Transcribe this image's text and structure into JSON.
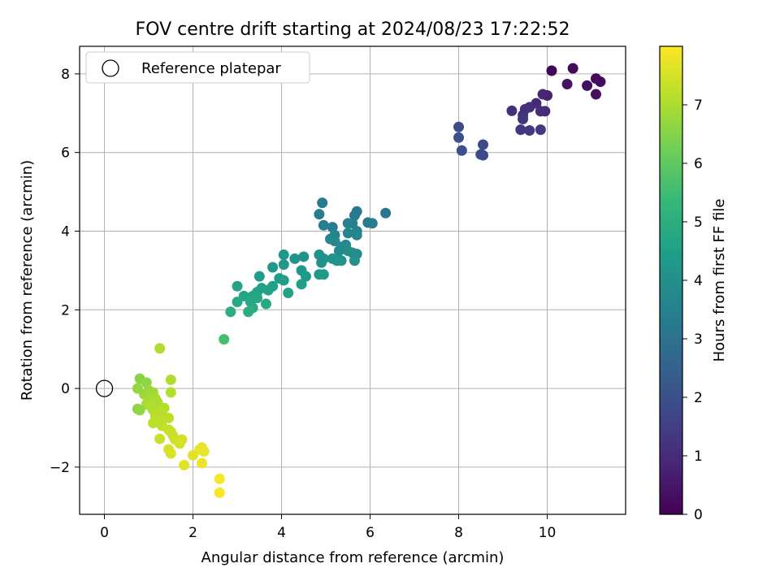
{
  "chart_data": {
    "type": "scatter",
    "title": "FOV centre drift starting at 2024/08/23 17:22:52",
    "xlabel": "Angular distance from reference (arcmin)",
    "ylabel": "Rotation from reference (arcmin)",
    "xlim": [
      -0.56,
      11.77
    ],
    "ylim": [
      -3.2,
      8.7
    ],
    "xticks": [
      0,
      2,
      4,
      6,
      8,
      10
    ],
    "xtick_labels": [
      "0",
      "2",
      "4",
      "6",
      "8",
      "10"
    ],
    "yticks": [
      -2,
      0,
      2,
      4,
      6,
      8
    ],
    "ytick_labels": [
      "−2",
      "0",
      "2",
      "4",
      "6",
      "8"
    ],
    "grid": true,
    "legend": {
      "placement": "upper-left",
      "entries": [
        "Reference platepar"
      ]
    },
    "colorbar": {
      "label": "Hours from first FF file",
      "colormap": "viridis",
      "range": [
        0,
        8
      ],
      "ticks": [
        0,
        1,
        2,
        3,
        4,
        5,
        6,
        7
      ],
      "tick_labels": [
        "0",
        "1",
        "2",
        "3",
        "4",
        "5",
        "6",
        "7"
      ]
    },
    "colormap_stops": [
      "#440154",
      "#482878",
      "#3e4989",
      "#31688e",
      "#26828e",
      "#1f9e89",
      "#35b779",
      "#6ece58",
      "#b5de2b",
      "#fde725"
    ],
    "series": [
      {
        "name": "Reference platepar",
        "marker": "open-circle",
        "points": [
          {
            "x": 0,
            "y": 0
          }
        ]
      },
      {
        "marker": "filled-circle",
        "points": [
          {
            "x": 10.1,
            "y": 8.08,
            "t": 0.1
          },
          {
            "x": 10.58,
            "y": 8.14,
            "t": 0.15
          },
          {
            "x": 11.1,
            "y": 7.88,
            "t": 0.2
          },
          {
            "x": 11.2,
            "y": 7.8,
            "t": 0.25
          },
          {
            "x": 10.9,
            "y": 7.7,
            "t": 0.3
          },
          {
            "x": 11.1,
            "y": 7.48,
            "t": 0.35
          },
          {
            "x": 10.45,
            "y": 7.74,
            "t": 0.4
          },
          {
            "x": 10.0,
            "y": 7.45,
            "t": 0.7
          },
          {
            "x": 9.9,
            "y": 7.48,
            "t": 0.8
          },
          {
            "x": 9.75,
            "y": 7.25,
            "t": 0.9
          },
          {
            "x": 9.6,
            "y": 7.15,
            "t": 1.0
          },
          {
            "x": 9.95,
            "y": 7.05,
            "t": 0.95
          },
          {
            "x": 9.85,
            "y": 7.05,
            "t": 1.0
          },
          {
            "x": 9.2,
            "y": 7.06,
            "t": 1.1
          },
          {
            "x": 9.45,
            "y": 6.95,
            "t": 1.2
          },
          {
            "x": 9.5,
            "y": 7.1,
            "t": 1.15
          },
          {
            "x": 9.45,
            "y": 6.85,
            "t": 1.25
          },
          {
            "x": 9.4,
            "y": 6.58,
            "t": 1.3
          },
          {
            "x": 9.6,
            "y": 6.56,
            "t": 1.35
          },
          {
            "x": 9.85,
            "y": 6.58,
            "t": 1.3
          },
          {
            "x": 8.0,
            "y": 6.65,
            "t": 1.9
          },
          {
            "x": 8.0,
            "y": 6.38,
            "t": 1.95
          },
          {
            "x": 8.55,
            "y": 6.2,
            "t": 1.8
          },
          {
            "x": 8.07,
            "y": 6.05,
            "t": 1.95
          },
          {
            "x": 8.5,
            "y": 5.95,
            "t": 1.85
          },
          {
            "x": 8.55,
            "y": 5.93,
            "t": 1.85
          },
          {
            "x": 6.35,
            "y": 4.46,
            "t": 3.1
          },
          {
            "x": 5.7,
            "y": 4.5,
            "t": 3.2
          },
          {
            "x": 5.65,
            "y": 4.4,
            "t": 3.25
          },
          {
            "x": 4.92,
            "y": 4.72,
            "t": 3.3
          },
          {
            "x": 4.85,
            "y": 4.43,
            "t": 3.35
          },
          {
            "x": 4.95,
            "y": 4.15,
            "t": 3.4
          },
          {
            "x": 5.15,
            "y": 4.1,
            "t": 3.4
          },
          {
            "x": 5.5,
            "y": 4.2,
            "t": 3.45
          },
          {
            "x": 5.6,
            "y": 4.2,
            "t": 3.5
          },
          {
            "x": 5.95,
            "y": 4.22,
            "t": 3.35
          },
          {
            "x": 6.05,
            "y": 4.2,
            "t": 3.3
          },
          {
            "x": 5.7,
            "y": 4.0,
            "t": 3.6
          },
          {
            "x": 5.5,
            "y": 3.95,
            "t": 3.65
          },
          {
            "x": 5.7,
            "y": 3.9,
            "t": 3.7
          },
          {
            "x": 5.2,
            "y": 3.9,
            "t": 3.6
          },
          {
            "x": 5.1,
            "y": 3.8,
            "t": 3.7
          },
          {
            "x": 5.2,
            "y": 3.75,
            "t": 3.75
          },
          {
            "x": 5.45,
            "y": 3.65,
            "t": 3.8
          },
          {
            "x": 5.35,
            "y": 3.6,
            "t": 3.8
          },
          {
            "x": 5.3,
            "y": 3.5,
            "t": 3.85
          },
          {
            "x": 5.5,
            "y": 3.5,
            "t": 3.9
          },
          {
            "x": 5.6,
            "y": 3.45,
            "t": 3.95
          },
          {
            "x": 5.7,
            "y": 3.42,
            "t": 3.9
          },
          {
            "x": 5.65,
            "y": 3.25,
            "t": 4.0
          },
          {
            "x": 4.85,
            "y": 3.4,
            "t": 4.0
          },
          {
            "x": 4.95,
            "y": 3.3,
            "t": 4.05
          },
          {
            "x": 4.9,
            "y": 3.2,
            "t": 4.1
          },
          {
            "x": 5.15,
            "y": 3.3,
            "t": 4.05
          },
          {
            "x": 5.25,
            "y": 3.25,
            "t": 4.1
          },
          {
            "x": 5.35,
            "y": 3.25,
            "t": 4.15
          },
          {
            "x": 4.5,
            "y": 3.35,
            "t": 4.1
          },
          {
            "x": 4.3,
            "y": 3.3,
            "t": 4.15
          },
          {
            "x": 4.05,
            "y": 3.4,
            "t": 4.2
          },
          {
            "x": 4.05,
            "y": 3.15,
            "t": 4.25
          },
          {
            "x": 3.8,
            "y": 3.08,
            "t": 4.3
          },
          {
            "x": 4.45,
            "y": 3.0,
            "t": 4.3
          },
          {
            "x": 4.55,
            "y": 2.85,
            "t": 4.35
          },
          {
            "x": 4.85,
            "y": 2.9,
            "t": 4.3
          },
          {
            "x": 4.95,
            "y": 2.9,
            "t": 4.35
          },
          {
            "x": 3.5,
            "y": 2.85,
            "t": 4.4
          },
          {
            "x": 3.95,
            "y": 2.8,
            "t": 4.4
          },
          {
            "x": 4.05,
            "y": 2.75,
            "t": 4.45
          },
          {
            "x": 4.45,
            "y": 2.65,
            "t": 4.45
          },
          {
            "x": 3.8,
            "y": 2.6,
            "t": 4.5
          },
          {
            "x": 3.55,
            "y": 2.55,
            "t": 4.55
          },
          {
            "x": 3.7,
            "y": 2.5,
            "t": 4.55
          },
          {
            "x": 3.45,
            "y": 2.45,
            "t": 4.6
          },
          {
            "x": 4.15,
            "y": 2.43,
            "t": 4.6
          },
          {
            "x": 3.0,
            "y": 2.6,
            "t": 4.65
          },
          {
            "x": 3.15,
            "y": 2.35,
            "t": 4.7
          },
          {
            "x": 3.35,
            "y": 2.35,
            "t": 4.7
          },
          {
            "x": 3.45,
            "y": 2.3,
            "t": 4.75
          },
          {
            "x": 3.3,
            "y": 2.2,
            "t": 4.8
          },
          {
            "x": 3.0,
            "y": 2.2,
            "t": 4.85
          },
          {
            "x": 3.35,
            "y": 2.05,
            "t": 4.9
          },
          {
            "x": 3.65,
            "y": 2.15,
            "t": 4.85
          },
          {
            "x": 3.25,
            "y": 1.95,
            "t": 4.95
          },
          {
            "x": 2.85,
            "y": 1.95,
            "t": 5.0
          },
          {
            "x": 2.7,
            "y": 1.25,
            "t": 5.6
          },
          {
            "x": 1.25,
            "y": 1.02,
            "t": 7.05
          },
          {
            "x": 0.8,
            "y": 0.25,
            "t": 6.55
          },
          {
            "x": 0.95,
            "y": 0.15,
            "t": 6.6
          },
          {
            "x": 0.75,
            "y": 0.0,
            "t": 6.7
          },
          {
            "x": 1.0,
            "y": -0.05,
            "t": 6.75
          },
          {
            "x": 0.9,
            "y": -0.15,
            "t": 6.8
          },
          {
            "x": 1.1,
            "y": -0.1,
            "t": 6.85
          },
          {
            "x": 1.5,
            "y": 0.22,
            "t": 7.05
          },
          {
            "x": 1.5,
            "y": -0.1,
            "t": 7.1
          },
          {
            "x": 1.0,
            "y": -0.3,
            "t": 6.9
          },
          {
            "x": 1.15,
            "y": -0.25,
            "t": 6.95
          },
          {
            "x": 0.95,
            "y": -0.4,
            "t": 7.0
          },
          {
            "x": 1.2,
            "y": -0.35,
            "t": 7.0
          },
          {
            "x": 1.05,
            "y": -0.45,
            "t": 7.05
          },
          {
            "x": 0.75,
            "y": -0.52,
            "t": 6.6
          },
          {
            "x": 0.8,
            "y": -0.55,
            "t": 6.65
          },
          {
            "x": 1.1,
            "y": -0.55,
            "t": 7.05
          },
          {
            "x": 1.35,
            "y": -0.5,
            "t": 7.1
          },
          {
            "x": 1.2,
            "y": -0.6,
            "t": 7.1
          },
          {
            "x": 1.15,
            "y": -0.7,
            "t": 7.15
          },
          {
            "x": 1.3,
            "y": -0.65,
            "t": 7.15
          },
          {
            "x": 1.45,
            "y": -0.75,
            "t": 7.2
          },
          {
            "x": 1.1,
            "y": -0.88,
            "t": 7.2
          },
          {
            "x": 1.25,
            "y": -0.85,
            "t": 7.25
          },
          {
            "x": 1.3,
            "y": -0.95,
            "t": 7.25
          },
          {
            "x": 1.45,
            "y": -1.05,
            "t": 7.3
          },
          {
            "x": 1.5,
            "y": -1.1,
            "t": 7.3
          },
          {
            "x": 1.55,
            "y": -1.2,
            "t": 7.35
          },
          {
            "x": 1.25,
            "y": -1.28,
            "t": 7.35
          },
          {
            "x": 1.6,
            "y": -1.3,
            "t": 7.4
          },
          {
            "x": 1.7,
            "y": -1.35,
            "t": 7.45
          },
          {
            "x": 1.75,
            "y": -1.3,
            "t": 7.45
          },
          {
            "x": 1.45,
            "y": -1.55,
            "t": 7.5
          },
          {
            "x": 1.5,
            "y": -1.65,
            "t": 7.55
          },
          {
            "x": 1.7,
            "y": -1.4,
            "t": 7.5
          },
          {
            "x": 2.0,
            "y": -1.7,
            "t": 7.65
          },
          {
            "x": 2.15,
            "y": -1.55,
            "t": 7.7
          },
          {
            "x": 2.2,
            "y": -1.5,
            "t": 7.75
          },
          {
            "x": 2.25,
            "y": -1.6,
            "t": 7.75
          },
          {
            "x": 2.2,
            "y": -1.9,
            "t": 7.8
          },
          {
            "x": 1.8,
            "y": -1.95,
            "t": 7.65
          },
          {
            "x": 2.6,
            "y": -2.3,
            "t": 7.9
          },
          {
            "x": 2.6,
            "y": -2.65,
            "t": 7.95
          }
        ]
      }
    ]
  }
}
